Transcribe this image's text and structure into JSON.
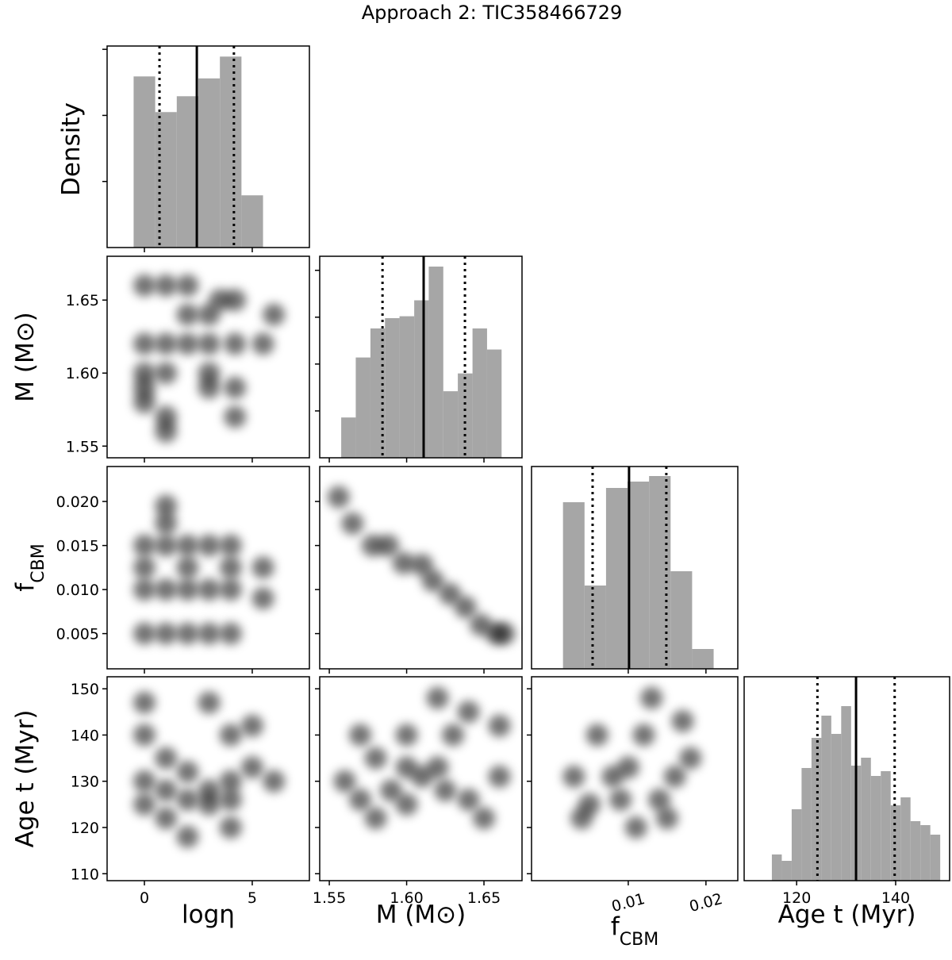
{
  "chart_data": {
    "type": "corner",
    "title": "Approach 2: TIC358466729",
    "density_label": "Density",
    "params": [
      {
        "label": "logη",
        "xlim": [
          -1.73,
          7.65
        ],
        "xticks": [
          0,
          5
        ]
      },
      {
        "label": "M (M⊙)",
        "xlim": [
          1.5438,
          1.6746
        ],
        "xticks": [
          1.55,
          {
            "value": 1.6,
            "label": "1.60"
          },
          1.65
        ],
        "ylim": [
          1.542,
          1.68
        ],
        "yticks": [
          1.55,
          {
            "value": 1.6,
            "label": "1.60"
          },
          1.65
        ]
      },
      {
        "label": "f",
        "label_sub": "CBM",
        "xlim": [
          -0.00245,
          0.0241
        ],
        "xticks": [
          0.01,
          0.02
        ],
        "ylim": [
          0.001,
          0.02397
        ],
        "yticks": [
          0.005,
          {
            "value": 0.01,
            "label": "0.010"
          },
          0.015,
          {
            "value": 0.02,
            "label": "0.020"
          }
        ]
      },
      {
        "label": "Age t (Myr)",
        "xlim": [
          109.4,
          150.9
        ],
        "xticks": [
          120,
          140
        ],
        "ylim": [
          108.5,
          152.6
        ],
        "yticks": [
          110,
          120,
          130,
          140,
          150
        ]
      }
    ],
    "histograms": [
      {
        "bins": [
          -0.5,
          0.5,
          1.5,
          2.5,
          3.5,
          4.5,
          5.5
        ],
        "counts": [
          2.59,
          2.05,
          2.29,
          2.56,
          2.89,
          0.79
        ],
        "ylim": [
          0,
          3.05
        ],
        "yticks": [
          1,
          2,
          3
        ],
        "quantiles": [
          0.7,
          2.43,
          4.15
        ],
        "color": "#a6a6a6"
      },
      {
        "bins": [
          1.5577,
          1.5671,
          1.5766,
          1.586,
          1.5954,
          1.6049,
          1.6143,
          1.6237,
          1.6331,
          1.6426,
          1.652,
          1.6614
        ],
        "counts": [
          0.86,
          2.14,
          2.76,
          2.98,
          3.02,
          3.36,
          4.08,
          1.42,
          1.8,
          2.76,
          2.31
        ],
        "ylim": [
          0,
          4.3
        ],
        "yticks": [
          1,
          2,
          3,
          4
        ],
        "quantiles": [
          1.5844,
          1.611,
          1.6377
        ],
        "color": "#a6a6a6"
      },
      {
        "bins": [
          0.0016,
          0.00437,
          0.00714,
          0.00991,
          0.01268,
          0.01545,
          0.01822,
          0.02099
        ],
        "counts": [
          2.1,
          1.05,
          2.28,
          2.36,
          2.43,
          1.23,
          0.25
        ],
        "ylim": [
          0,
          2.55
        ],
        "yticks": [],
        "quantiles": [
          0.00541,
          0.0101,
          0.0149
        ],
        "color": "#a6a6a6"
      },
      {
        "bins": [
          115,
          117,
          119,
          121,
          123,
          125,
          127,
          129,
          131,
          133,
          135,
          137,
          139,
          141,
          143,
          145,
          147,
          149
        ],
        "counts": [
          0.66,
          0.5,
          1.8,
          2.84,
          3.6,
          4.16,
          3.7,
          4.4,
          2.9,
          3.1,
          2.64,
          2.76,
          1.9,
          2.1,
          1.5,
          1.4,
          1.16
        ],
        "ylim": [
          0,
          5.14
        ],
        "yticks": [],
        "quantiles": [
          124.2,
          132.0,
          139.8
        ],
        "color": "#a6a6a6"
      }
    ],
    "scatter": [
      {
        "x": [
          0,
          1,
          2,
          3.5,
          4.2,
          0,
          1,
          2,
          3,
          4.2,
          5.5,
          0,
          0,
          1,
          3,
          4.2,
          3,
          1,
          1,
          0,
          4.2,
          6,
          2,
          3
        ],
        "y": [
          1.66,
          1.66,
          1.66,
          1.65,
          1.65,
          1.62,
          1.62,
          1.62,
          1.62,
          1.62,
          1.62,
          1.6,
          1.59,
          1.6,
          1.6,
          1.59,
          1.59,
          1.57,
          1.56,
          1.58,
          1.57,
          1.64,
          1.64,
          1.64
        ]
      },
      {
        "x": [
          0,
          0,
          0,
          0,
          1,
          2,
          3,
          4,
          1,
          1,
          1,
          2,
          3,
          4,
          1,
          2,
          3,
          4,
          4,
          2,
          5.5,
          5.5
        ],
        "y": [
          0.015,
          0.0125,
          0.01,
          0.005,
          0.005,
          0.005,
          0.005,
          0.005,
          0.0175,
          0.0195,
          0.015,
          0.015,
          0.015,
          0.015,
          0.01,
          0.01,
          0.01,
          0.01,
          0.0125,
          0.0125,
          0.0125,
          0.009
        ]
      },
      {
        "x": [
          1.556,
          1.565,
          1.578,
          1.588,
          1.598,
          1.61,
          1.617,
          1.628,
          1.638,
          1.648,
          1.658,
          1.663
        ],
        "y": [
          0.0205,
          0.0175,
          0.015,
          0.015,
          0.013,
          0.0128,
          0.011,
          0.0095,
          0.008,
          0.006,
          0.005,
          0.005
        ]
      },
      {
        "x": [
          0,
          0,
          0,
          1,
          1,
          2,
          2,
          3,
          3,
          4,
          4,
          4,
          5,
          6,
          0,
          3,
          1,
          4,
          2,
          5
        ],
        "y": [
          140,
          130,
          125,
          135,
          128,
          132,
          126,
          128,
          125,
          130,
          126,
          140,
          133,
          130,
          147,
          147,
          122,
          120,
          118,
          142
        ]
      },
      {
        "x": [
          1.56,
          1.57,
          1.58,
          1.58,
          1.59,
          1.6,
          1.6,
          1.61,
          1.62,
          1.62,
          1.625,
          1.63,
          1.64,
          1.65,
          1.66,
          1.66,
          1.57,
          1.64,
          1.6
        ],
        "y": [
          130,
          140,
          135,
          122,
          128,
          125,
          140,
          131,
          133,
          148,
          128,
          140,
          126,
          122,
          131,
          142,
          126,
          145,
          133
        ]
      },
      {
        "x": [
          0.003,
          0.005,
          0.006,
          0.008,
          0.01,
          0.012,
          0.013,
          0.014,
          0.015,
          0.016,
          0.017,
          0.004,
          0.009,
          0.011,
          0.018
        ],
        "y": [
          131,
          125,
          140,
          131,
          133,
          140,
          148,
          126,
          122,
          131,
          143,
          122,
          126,
          120,
          135
        ]
      }
    ],
    "point_color": "#000000"
  }
}
